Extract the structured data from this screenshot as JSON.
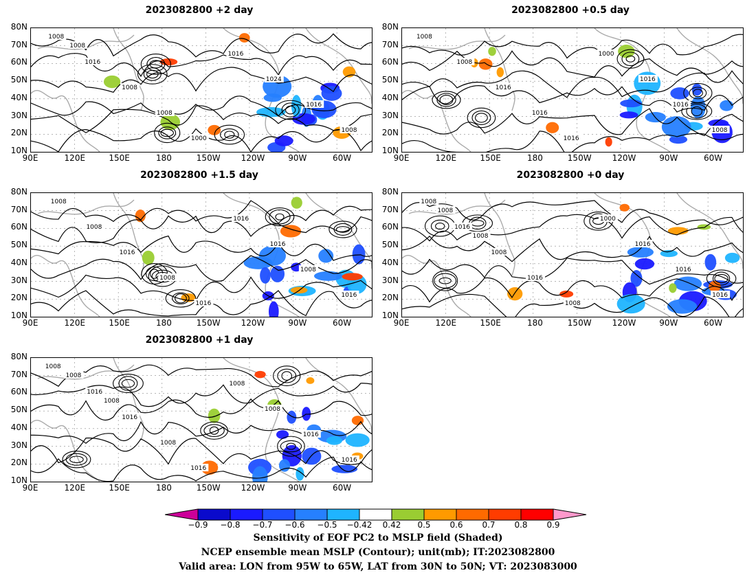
{
  "chart_data": {
    "type": "heatmap",
    "panels": [
      {
        "title": "2023082800 +2 day",
        "contour_labels": [
          "1008",
          "1016",
          "1008",
          "1008",
          "1000",
          "1016",
          "1024",
          "1016",
          "1008",
          "1008"
        ]
      },
      {
        "title": "2023082800 +0.5 day",
        "contour_labels": [
          "1008",
          "1008",
          "1016",
          "1016",
          "1016",
          "1000",
          "1016",
          "1016",
          "1008"
        ]
      },
      {
        "title": "2023082800 +1.5 day",
        "contour_labels": [
          "1008",
          "1008",
          "1016",
          "1008",
          "1016",
          "1016",
          "1016",
          "1008",
          "1016"
        ]
      },
      {
        "title": "2023082800 +0 day",
        "contour_labels": [
          "1008",
          "1016",
          "1008",
          "1016",
          "1008",
          "1000",
          "1016",
          "1016",
          "1016",
          "1008",
          "1008"
        ]
      },
      {
        "title": "2023082800 +1 day",
        "contour_labels": [
          "1008",
          "1016",
          "1016",
          "1008",
          "1016",
          "1008",
          "1008",
          "1016",
          "1016",
          "1008",
          "1008"
        ]
      }
    ],
    "y_ticks": [
      "80N",
      "70N",
      "60N",
      "50N",
      "40N",
      "30N",
      "20N",
      "10N"
    ],
    "x_ticks": [
      "90E",
      "120E",
      "150E",
      "180",
      "150W",
      "120W",
      "90W",
      "60W"
    ],
    "lat_range": [
      10,
      80
    ],
    "colorbar": {
      "levels": [
        -0.9,
        -0.8,
        -0.7,
        -0.6,
        -0.5,
        -0.42,
        0.42,
        0.5,
        0.6,
        0.7,
        0.8,
        0.9
      ],
      "labels": [
        "−0.9",
        "−0.8",
        "−0.7",
        "−0.6",
        "−0.5",
        "−0.42",
        "0.42",
        "0.5",
        "0.6",
        "0.7",
        "0.8",
        "0.9"
      ],
      "colors": [
        "#0a0acc",
        "#1a1aff",
        "#1f4fff",
        "#2680ff",
        "#1fb4ff",
        "#ffffff",
        "#9acd32",
        "#ff9a00",
        "#ff6a00",
        "#ff3c00",
        "#ff0000"
      ],
      "under_color": "#cc0099",
      "over_color": "#ff99cc"
    }
  },
  "captions": [
    "Sensitivity of EOF PC2 to MSLP field (Shaded)",
    "NCEP ensemble mean MSLP (Contour); unit(mb); IT:2023082800",
    "Valid area: LON from 95W to 65W, LAT from 30N to 50N; VT: 2023083000"
  ]
}
